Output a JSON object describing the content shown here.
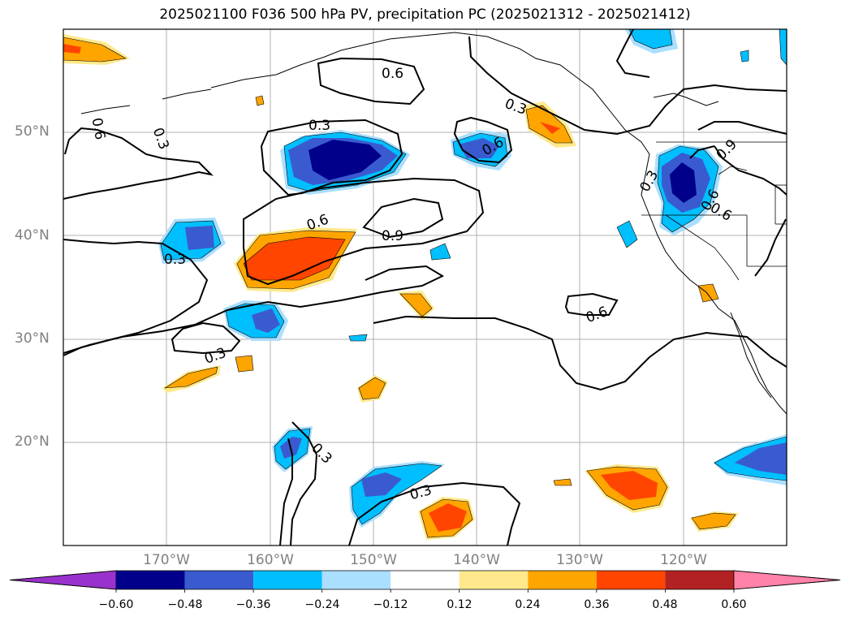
{
  "title": "2025021100 F036 500 hPa PV, precipitation PC (2025021312 - 2025021412)",
  "lat_labels": [
    "50°N",
    "40°N",
    "30°N",
    "20°N"
  ],
  "lon_labels": [
    "170°W",
    "160°W",
    "150°W",
    "140°W",
    "130°W",
    "120°W"
  ],
  "contour_labels": [
    "0.6",
    "0.3",
    "0.6",
    "0.3",
    "0.3",
    "0.6",
    "0.6",
    "0.9",
    "0.3",
    "0.3",
    "0.3",
    "0.6",
    "0.3",
    "0.3",
    "0.6",
    "0.9",
    "0.6"
  ],
  "colorbar": {
    "colors": [
      "#9932cc",
      "#00008b",
      "#3a5bd0",
      "#00bfff",
      "#aadfff",
      "#ffffff",
      "#ffe98c",
      "#ffa500",
      "#ff4500",
      "#b22222",
      "#ff82a9"
    ],
    "ticks": [
      "−0.60",
      "−0.48",
      "−0.36",
      "−0.24",
      "−0.12",
      "0.12",
      "0.24",
      "0.36",
      "0.48",
      "0.60"
    ]
  }
}
